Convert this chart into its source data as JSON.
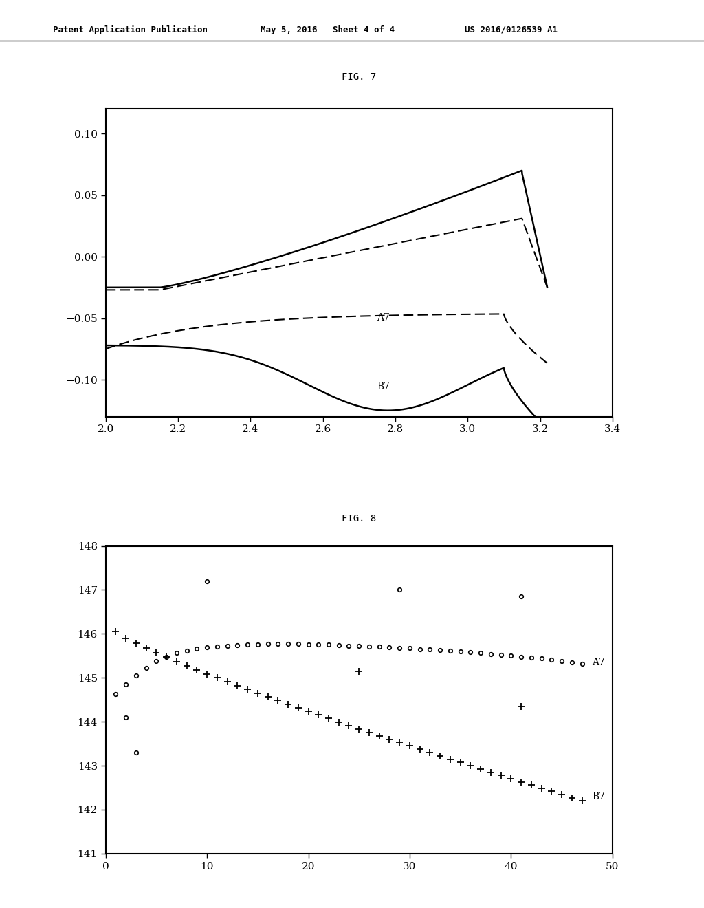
{
  "header_left": "Patent Application Publication",
  "header_mid": "May 5, 2016   Sheet 4 of 4",
  "header_right": "US 2016/0126539 A1",
  "fig7_title": "FIG. 7",
  "fig8_title": "FIG. 8",
  "fig7_xlim": [
    2.0,
    3.4
  ],
  "fig7_ylim": [
    -0.13,
    0.12
  ],
  "fig7_xticks": [
    2.0,
    2.2,
    2.4,
    2.6,
    2.8,
    3.0,
    3.2,
    3.4
  ],
  "fig7_yticks": [
    -0.1,
    -0.05,
    0.0,
    0.05,
    0.1
  ],
  "fig8_xlim": [
    0,
    50
  ],
  "fig8_ylim": [
    141,
    148
  ],
  "fig8_xticks": [
    0,
    10,
    20,
    30,
    40,
    50
  ],
  "fig8_yticks": [
    141,
    142,
    143,
    144,
    145,
    146,
    147,
    148
  ],
  "background_color": "#ffffff",
  "line_color": "#000000"
}
